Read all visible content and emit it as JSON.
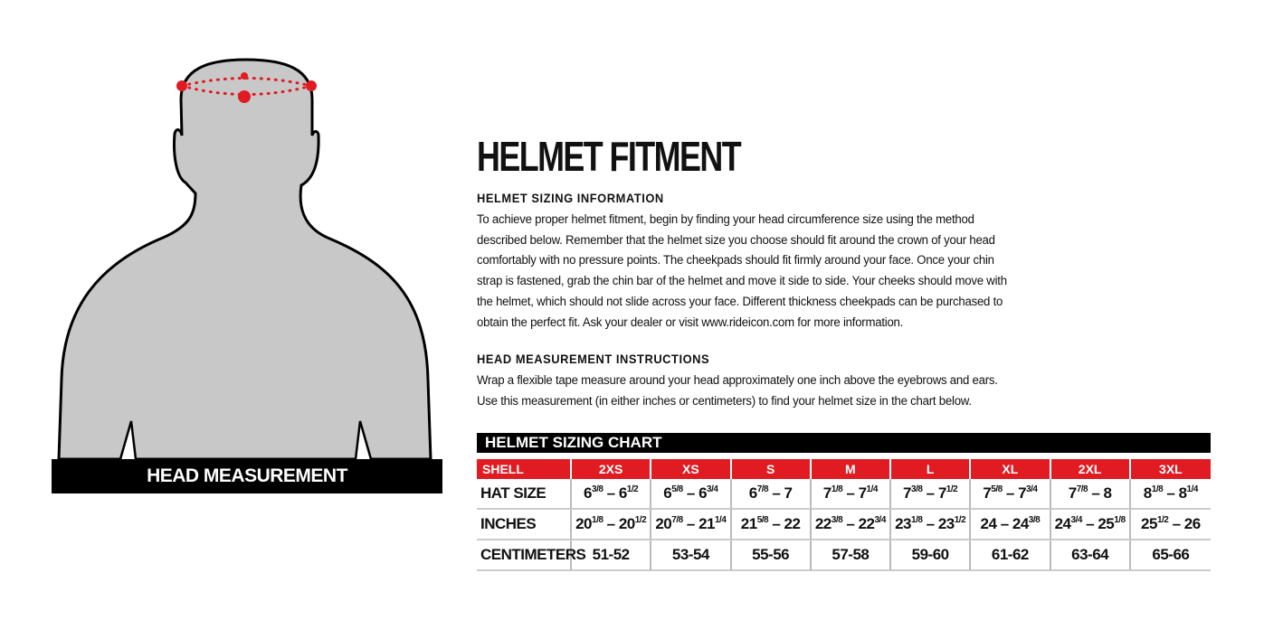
{
  "figure": {
    "label": "HEAD MEASUREMENT",
    "silhouette_color": "#c8c8c8",
    "marker_color": "#e01b22"
  },
  "title": "HELMET FITMENT",
  "sizing_info": {
    "heading": "HELMET SIZING INFORMATION",
    "lines": [
      "To achieve proper helmet fitment, begin by finding your head circumference size using the method",
      "described below. Remember that the helmet size you choose should fit around the crown of your head",
      "comfortably with no pressure points. The cheekpads should fit firmly around your face. Once your chin",
      "strap is fastened, grab the chin bar of the helmet and move it side to side. Your cheeks should move with",
      "the helmet, which should not slide across your face. Different thickness cheekpads can be purchased to",
      "obtain the perfect fit. Ask your dealer or visit www.rideicon.com for more information."
    ]
  },
  "measurement": {
    "heading": "HEAD MEASUREMENT INSTRUCTIONS",
    "lines": [
      "Wrap a flexible tape measure around your head approximately one inch above the eyebrows and ears.",
      "Use this measurement (in either inches or centimeters) to find your helmet size in the chart below."
    ]
  },
  "chart": {
    "title": "HELMET SIZING CHART",
    "accent": "#e01b22",
    "header_label": "SHELL",
    "shells": [
      "2XS",
      "XS",
      "S",
      "M",
      "L",
      "XL",
      "2XL",
      "3XL"
    ],
    "rows": [
      {
        "label": "HAT SIZE",
        "cells": [
          {
            "a": "6",
            "af": "3/8",
            "b": "6",
            "bf": "1/2"
          },
          {
            "a": "6",
            "af": "5/8",
            "b": "6",
            "bf": "3/4"
          },
          {
            "a": "6",
            "af": "7/8",
            "b": "7",
            "bf": ""
          },
          {
            "a": "7",
            "af": "1/8",
            "b": "7",
            "bf": "1/4"
          },
          {
            "a": "7",
            "af": "3/8",
            "b": "7",
            "bf": "1/2"
          },
          {
            "a": "7",
            "af": "5/8",
            "b": "7",
            "bf": "3/4"
          },
          {
            "a": "7",
            "af": "7/8",
            "b": "8",
            "bf": ""
          },
          {
            "a": "8",
            "af": "1/8",
            "b": "8",
            "bf": "1/4"
          }
        ]
      },
      {
        "label": "INCHES",
        "cells": [
          {
            "a": "20",
            "af": "1/8",
            "b": "20",
            "bf": "1/2"
          },
          {
            "a": "20",
            "af": "7/8",
            "b": "21",
            "bf": "1/4"
          },
          {
            "a": "21",
            "af": "5/8",
            "b": "22",
            "bf": ""
          },
          {
            "a": "22",
            "af": "3/8",
            "b": "22",
            "bf": "3/4"
          },
          {
            "a": "23",
            "af": "1/8",
            "b": "23",
            "bf": "1/2"
          },
          {
            "a": "24",
            "af": "",
            "b": "24",
            "bf": "3/8"
          },
          {
            "a": "24",
            "af": "3/4",
            "b": "25",
            "bf": "1/8"
          },
          {
            "a": "25",
            "af": "1/2",
            "b": "26",
            "bf": ""
          }
        ]
      },
      {
        "label": "CENTIMETERS",
        "cells": [
          {
            "a": "51-52"
          },
          {
            "a": "53-54"
          },
          {
            "a": "55-56"
          },
          {
            "a": "57-58"
          },
          {
            "a": "59-60"
          },
          {
            "a": "61-62"
          },
          {
            "a": "63-64"
          },
          {
            "a": "65-66"
          }
        ]
      }
    ]
  }
}
